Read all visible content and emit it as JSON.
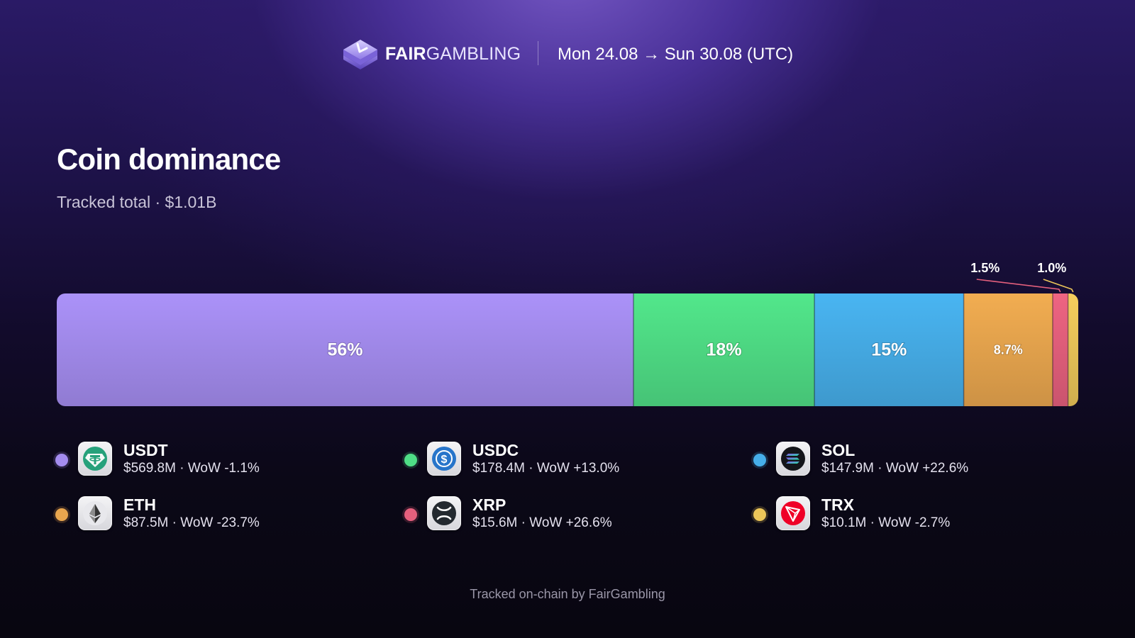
{
  "header": {
    "brand_bold": "FAIR",
    "brand_light": "GAMBLING",
    "logo_icon": "fairgambling-logo-icon",
    "date_range": "Mon 24.08 → Sun 30.08 (UTC)"
  },
  "title": "Coin dominance",
  "subtitle": "Tracked total · $1.01B",
  "chart_data": {
    "type": "bar",
    "orientation": "horizontal-stacked-100",
    "categories": [
      "USDT",
      "USDC",
      "SOL",
      "ETH",
      "XRP",
      "TRX"
    ],
    "values": [
      56.4,
      17.7,
      14.6,
      8.7,
      1.5,
      1.0
    ],
    "labels": [
      "56%",
      "18%",
      "15%",
      "8.7%",
      "1.5%",
      "1.0%"
    ],
    "colors": [
      "#a48cef",
      "#4fde86",
      "#46aee9",
      "#e9a64e",
      "#e5607d",
      "#ecc659"
    ],
    "legend": "bottom"
  },
  "legend": [
    {
      "name": "USDT",
      "detail": "$569.8M · WoW -1.1%",
      "icon": "tether-icon",
      "color": "#a48cef"
    },
    {
      "name": "USDC",
      "detail": "$178.4M · WoW +13.0%",
      "icon": "usdc-icon",
      "color": "#4fde86"
    },
    {
      "name": "SOL",
      "detail": "$147.9M · WoW +22.6%",
      "icon": "solana-icon",
      "color": "#46aee9"
    },
    {
      "name": "ETH",
      "detail": "$87.5M · WoW -23.7%",
      "icon": "ethereum-icon",
      "color": "#e9a64e"
    },
    {
      "name": "XRP",
      "detail": "$15.6M · WoW +26.6%",
      "icon": "xrp-icon",
      "color": "#e5607d"
    },
    {
      "name": "TRX",
      "detail": "$10.1M · WoW -2.7%",
      "icon": "tron-icon",
      "color": "#ecc659"
    }
  ],
  "footer": "Tracked on-chain by FairGambling"
}
